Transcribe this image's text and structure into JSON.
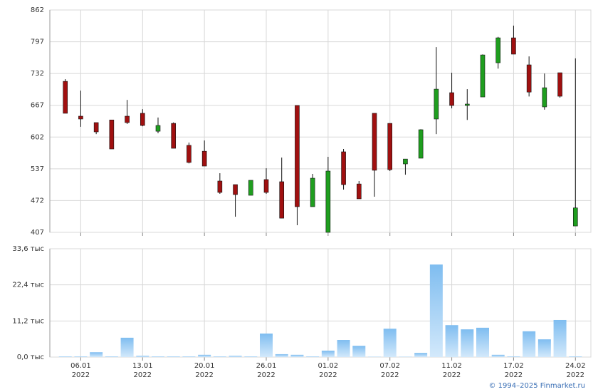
{
  "chart_data": [
    {
      "type": "candlestick",
      "up_color": "#1f9e1f",
      "down_color": "#a01010",
      "open": [
        716,
        644.7,
        631.6,
        637,
        644.7,
        650.6,
        613.9,
        630,
        585,
        573,
        512,
        504.7,
        482.8,
        515,
        510.6,
        666.6,
        459.5,
        407,
        571.8,
        506,
        650.6,
        630,
        547,
        558.7,
        638.9,
        692.8,
        666.6,
        684,
        754,
        805,
        749.7,
        663.7,
        733.6,
        420
      ],
      "high": [
        720.5,
        697,
        631.6,
        637,
        678,
        659,
        642,
        632,
        590.8,
        595,
        528,
        504.7,
        513.5,
        538,
        560,
        666.6,
        526.6,
        561.6,
        577.6,
        512,
        650.6,
        630,
        557,
        618,
        786,
        733.6,
        700,
        771,
        807,
        830,
        767,
        732,
        733.6,
        763
      ],
      "low": [
        650.6,
        623,
        608,
        577.6,
        628.7,
        624,
        609.7,
        579,
        548,
        542.6,
        485.8,
        439,
        482.8,
        485.8,
        436,
        421.6,
        459.5,
        407,
        494.5,
        475.6,
        480,
        532.4,
        525,
        558.7,
        608,
        660.7,
        637,
        684,
        742,
        771.6,
        685,
        658,
        682.6,
        421
      ],
      "close": [
        650.6,
        638.9,
        612.6,
        577.6,
        631.6,
        625.7,
        625.7,
        579,
        550,
        542.6,
        488.7,
        484.3,
        513.5,
        488.7,
        436,
        459.5,
        517.8,
        532.4,
        504.7,
        475.6,
        534,
        535.3,
        557,
        617,
        700,
        666.6,
        669.5,
        770,
        805,
        771.6,
        694,
        702.9,
        685.5,
        457
      ],
      "ylim": [
        407,
        862
      ],
      "yticks": [
        407,
        472,
        537,
        602,
        667,
        732,
        797,
        862
      ],
      "grid": true
    },
    {
      "type": "bar",
      "color": "#8ec8f2",
      "categories": [
        null,
        "06.01",
        null,
        null,
        null,
        "13.01",
        null,
        null,
        null,
        "20.01",
        null,
        null,
        null,
        "26.01",
        null,
        null,
        null,
        "01.02",
        null,
        null,
        null,
        "07.02",
        null,
        null,
        null,
        "11.02",
        null,
        null,
        null,
        "17.02",
        null,
        null,
        null,
        "24.02"
      ],
      "category_years": [
        null,
        "2022",
        null,
        null,
        null,
        "2022",
        null,
        null,
        null,
        "2022",
        null,
        null,
        null,
        "2022",
        null,
        null,
        null,
        "2022",
        null,
        null,
        null,
        "2022",
        null,
        null,
        null,
        "2022",
        null,
        null,
        null,
        "2022",
        null,
        null,
        null,
        "2022"
      ],
      "values": [
        0.2,
        0.2,
        1.5,
        0.2,
        6.0,
        0.4,
        0.2,
        0.2,
        0.2,
        0.7,
        0.2,
        0.4,
        0.2,
        7.3,
        0.9,
        0.7,
        0.2,
        2.0,
        5.3,
        3.5,
        0.1,
        8.8,
        0.1,
        1.3,
        28.7,
        9.9,
        8.6,
        9.1,
        0.7,
        0.2,
        8.0,
        5.5,
        11.5,
        0.2
      ],
      "ylim": [
        0,
        33.6
      ],
      "yticks": [
        {
          "value": 0,
          "label": "0,0 тыс"
        },
        {
          "value": 11.2,
          "label": "11,2 тыс"
        },
        {
          "value": 22.4,
          "label": "22,4 тыс"
        },
        {
          "value": 33.6,
          "label": "33,6 тыс"
        }
      ],
      "grid": true
    }
  ],
  "footer": "© 1994–2025 Finmarket.ru"
}
